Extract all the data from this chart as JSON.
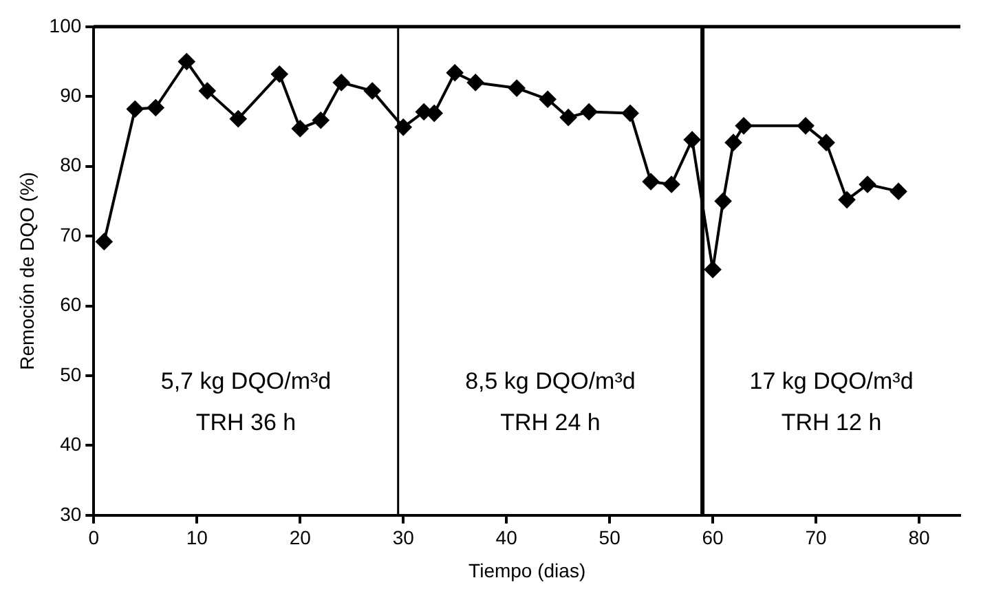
{
  "chart_data": {
    "type": "line",
    "xlabel": "Tiempo (dias)",
    "ylabel": "Remoción de DQO (%)",
    "x": [
      1,
      4,
      6,
      9,
      11,
      14,
      18,
      20,
      22,
      24,
      27,
      30,
      32,
      33,
      35,
      37,
      41,
      44,
      46,
      48,
      52,
      54,
      56,
      58,
      60,
      61,
      62,
      63,
      69,
      71,
      73,
      75,
      78
    ],
    "series": [
      {
        "color": "#000000",
        "values": [
          69.2,
          88.2,
          88.4,
          95,
          90.8,
          86.8,
          93.2,
          85.4,
          86.6,
          92,
          90.8,
          85.6,
          87.8,
          87.6,
          93.4,
          92,
          91.2,
          89.6,
          87,
          87.8,
          87.6,
          77.8,
          77.4,
          83.8,
          65.2,
          75,
          83.4,
          85.8,
          85.8,
          83.4,
          75.2,
          77.4,
          76.4
        ]
      }
    ],
    "xlim": [
      0,
      84
    ],
    "xticks": [
      0,
      10,
      20,
      30,
      40,
      50,
      60,
      70,
      80
    ],
    "ylim": [
      30,
      100
    ],
    "yticks": [
      30,
      40,
      50,
      60,
      70,
      80,
      90,
      100
    ],
    "ref_lines": [
      {
        "axis": "x",
        "value": 29.5,
        "color": "#000000"
      },
      {
        "axis": "x",
        "value": 59,
        "color": "#000000"
      }
    ],
    "annotations": [
      "5,7 kg DQO/m³d\nTRH 36 h",
      "8,5 kg DQO/m³d\nTRH 24 h",
      "17 kg DQO/m³d\nTRH 12 h"
    ],
    "grid": false,
    "legend": false,
    "marker": "diamond",
    "line_style": "solid"
  }
}
